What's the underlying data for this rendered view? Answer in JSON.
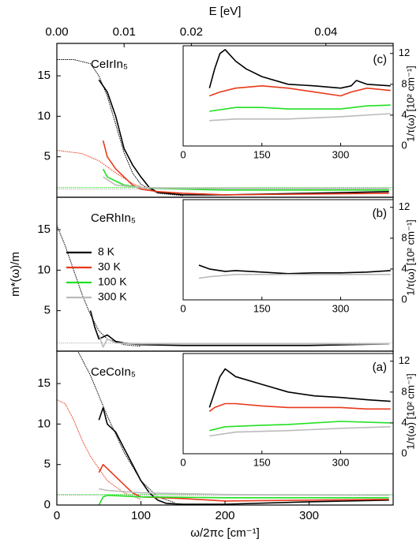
{
  "chart_data": [
    {
      "type": "line",
      "label": "CeIrIn₅",
      "panel": "(c)",
      "x2label": "E [eV]",
      "x2lim": [
        0,
        0.05
      ],
      "x2ticks": [
        {
          "value": 0,
          "label": "0.00"
        },
        {
          "value": 0.01,
          "label": "0.01"
        },
        {
          "value": 0.02,
          "label": "0.02"
        },
        {
          "value": 0.04,
          "label": "0.04"
        }
      ],
      "xlim": [
        0,
        400
      ],
      "ylim": [
        0,
        19
      ],
      "yticks": [
        0,
        5,
        10,
        15
      ],
      "series": [
        {
          "color": "#000000",
          "x": [
            50,
            60,
            70,
            80,
            90,
            100,
            110,
            120,
            150,
            200,
            250,
            300,
            350,
            395
          ],
          "values": [
            14.5,
            13,
            10,
            6,
            4,
            2.5,
            1.2,
            0.6,
            0.3,
            0.3,
            0.4,
            0.5,
            0.6,
            0.7
          ]
        },
        {
          "color": "#e8391b",
          "x": [
            55,
            60,
            70,
            80,
            90,
            100,
            120,
            150,
            200,
            300,
            395
          ],
          "values": [
            7,
            5,
            3.5,
            2.5,
            1.5,
            1,
            0.7,
            0.5,
            0.3,
            0.4,
            0.5
          ]
        },
        {
          "color": "#22e022",
          "x": [
            55,
            60,
            70,
            80,
            100,
            150,
            200,
            300,
            395
          ],
          "values": [
            3.5,
            2.5,
            2,
            1.5,
            1.2,
            1,
            0.9,
            0.9,
            0.9
          ]
        },
        {
          "color": "#bbbbbb",
          "x": [
            55,
            70,
            100,
            150,
            200,
            300,
            395
          ],
          "values": [
            2.5,
            1.5,
            1.2,
            1.1,
            1.1,
            1.1,
            1.1
          ]
        }
      ],
      "fits": [
        {
          "color": "#000000",
          "x": [
            0,
            20,
            40,
            50,
            60,
            70,
            80,
            90,
            100,
            120,
            150
          ],
          "values": [
            17,
            17,
            16.5,
            15,
            12.5,
            9,
            5.5,
            3,
            1.6,
            0.5,
            0.2
          ]
        },
        {
          "color": "#e8391b",
          "x": [
            0,
            30,
            50,
            70,
            90,
            110,
            130,
            150
          ],
          "values": [
            5.8,
            5.4,
            4.5,
            3,
            1.7,
            0.9,
            0.5,
            0.3
          ]
        },
        {
          "color": "#22e022",
          "x": [
            0,
            400
          ],
          "values": [
            1.2,
            1.2
          ]
        },
        {
          "color": "#bbbbbb",
          "x": [
            0,
            400
          ],
          "values": [
            1,
            1
          ]
        }
      ],
      "inset": {
        "type": "line",
        "ylabel": "1/τ(ω) [10² cm⁻¹]",
        "xlim": [
          0,
          400
        ],
        "xticks": [
          0,
          150,
          300
        ],
        "ylim": [
          0,
          13
        ],
        "yticks": [
          0,
          4,
          8,
          12
        ],
        "series": [
          {
            "color": "#000000",
            "x": [
              50,
              60,
              70,
              80,
              100,
              120,
              150,
              200,
              250,
              300,
              320,
              330,
              350,
              395
            ],
            "values": [
              7.5,
              10,
              12,
              12.5,
              11,
              10,
              9,
              8,
              7.8,
              7.5,
              7.8,
              8.5,
              8,
              7.8
            ]
          },
          {
            "color": "#e8391b",
            "x": [
              50,
              70,
              100,
              150,
              200,
              250,
              300,
              320,
              350,
              395
            ],
            "values": [
              6.5,
              7,
              7.5,
              7.8,
              7.5,
              7,
              6.5,
              7,
              7.5,
              7.2
            ]
          },
          {
            "color": "#22e022",
            "x": [
              50,
              100,
              150,
              200,
              300,
              350,
              395
            ],
            "values": [
              4.5,
              5,
              5,
              4.8,
              4.8,
              5.2,
              5.3
            ]
          },
          {
            "color": "#bbbbbb",
            "x": [
              50,
              100,
              200,
              300,
              395
            ],
            "values": [
              3.3,
              3.5,
              3.5,
              3.8,
              4.2
            ]
          }
        ]
      }
    },
    {
      "type": "line",
      "label": "CeRhIn₅",
      "panel": "(b)",
      "ylabel": "m*(ω)/m",
      "legend": "left",
      "xlim": [
        0,
        400
      ],
      "ylim": [
        0,
        19
      ],
      "yticks": [
        0,
        5,
        10,
        15
      ],
      "series": [
        {
          "name": "8 K",
          "color": "#000000",
          "x": [
            40,
            45,
            50,
            60,
            70,
            80,
            100,
            150,
            200,
            300,
            395
          ],
          "values": [
            5,
            3,
            1.5,
            2,
            1.2,
            1,
            0.8,
            0.7,
            0.7,
            0.7,
            0.9
          ]
        },
        {
          "name": "30 K",
          "color": "#e8391b",
          "x": [],
          "values": []
        },
        {
          "name": "100 K",
          "color": "#22e022",
          "x": [],
          "values": []
        },
        {
          "name": "300 K",
          "color": "#bbbbbb",
          "x": [
            50,
            55,
            60,
            70,
            100,
            200,
            395
          ],
          "values": [
            2,
            0.5,
            1.5,
            1,
            0.9,
            0.9,
            0.9
          ]
        }
      ],
      "fits": [
        {
          "color": "#000000",
          "x": [
            0,
            10,
            20,
            30,
            40,
            50,
            60,
            80,
            100
          ],
          "values": [
            15.5,
            13,
            10,
            7,
            4.5,
            2.5,
            1.5,
            0.8,
            0.6
          ]
        },
        {
          "color": "#bbbbbb",
          "x": [
            0,
            400
          ],
          "values": [
            1,
            1
          ]
        }
      ],
      "inset": {
        "type": "line",
        "ylabel": "1/τ(ω) [10² cm⁻¹]",
        "xlim": [
          0,
          400
        ],
        "xticks": [
          0,
          150,
          300
        ],
        "ylim": [
          0,
          13
        ],
        "yticks": [
          0,
          4,
          8,
          12
        ],
        "series": [
          {
            "color": "#000000",
            "x": [
              30,
              50,
              80,
              100,
              150,
              200,
              250,
              300,
              350,
              395
            ],
            "values": [
              4.5,
              4,
              3.7,
              3.8,
              3.6,
              3.4,
              3.5,
              3.5,
              3.6,
              3.8
            ]
          },
          {
            "color": "#bbbbbb",
            "x": [
              30,
              50,
              100,
              200,
              300,
              395
            ],
            "values": [
              2.8,
              3,
              3.3,
              3.3,
              3.3,
              3.3
            ]
          }
        ]
      }
    },
    {
      "type": "line",
      "label": "CeCoIn₅",
      "panel": "(a)",
      "xlabel": "ω/2πc [cm⁻¹]",
      "xlim": [
        0,
        400
      ],
      "xticks": [
        0,
        100,
        200,
        300
      ],
      "ylim": [
        0,
        19
      ],
      "yticks": [
        0,
        5,
        10,
        15
      ],
      "series": [
        {
          "color": "#000000",
          "x": [
            50,
            55,
            60,
            70,
            80,
            90,
            100,
            110,
            120,
            130,
            150,
            200,
            300,
            395
          ],
          "values": [
            10.5,
            12,
            10,
            9,
            7,
            5,
            3,
            1.5,
            0.6,
            0.2,
            0.1,
            0.1,
            0.4,
            0.6
          ]
        },
        {
          "color": "#e8391b",
          "x": [
            50,
            55,
            60,
            70,
            80,
            90,
            100,
            150,
            200,
            300,
            395
          ],
          "values": [
            4,
            5,
            4.5,
            3.5,
            2.5,
            1.5,
            1,
            0.8,
            0.5,
            0.6,
            0.7
          ]
        },
        {
          "color": "#22e022",
          "x": [
            50,
            55,
            60,
            100,
            200,
            395
          ],
          "values": [
            0,
            1,
            1.2,
            1,
            0.9,
            0.9
          ]
        },
        {
          "color": "#bbbbbb",
          "x": [
            50,
            60,
            100,
            200,
            395
          ],
          "values": [
            2,
            1.8,
            1.5,
            1.3,
            1.2
          ]
        }
      ],
      "fits": [
        {
          "color": "#000000",
          "x": [
            0,
            20,
            40,
            60,
            80,
            100,
            120,
            140
          ],
          "values": [
            22,
            20,
            16,
            11,
            6.5,
            3,
            1,
            0.3
          ]
        },
        {
          "color": "#e8391b",
          "x": [
            0,
            10,
            20,
            30,
            40,
            60,
            80,
            100
          ],
          "values": [
            13,
            12.5,
            10.5,
            8,
            6,
            3,
            1.5,
            0.7
          ]
        },
        {
          "color": "#22e022",
          "x": [
            0,
            400
          ],
          "values": [
            1.3,
            1.3
          ]
        },
        {
          "color": "#bbbbbb",
          "x": [
            0,
            400
          ],
          "values": [
            1.2,
            1.2
          ]
        }
      ],
      "inset": {
        "type": "line",
        "ylabel": "1/τ(ω) [10² cm⁻¹]",
        "xlim": [
          0,
          400
        ],
        "xticks": [
          0,
          150,
          300
        ],
        "ylim": [
          0,
          13
        ],
        "yticks": [
          0,
          4,
          8,
          12
        ],
        "series": [
          {
            "color": "#000000",
            "x": [
              50,
              60,
              70,
              80,
              100,
              150,
              200,
              250,
              300,
              350,
              395
            ],
            "values": [
              6,
              8,
              10,
              11,
              10,
              9,
              8,
              7.5,
              7.3,
              7,
              6.8
            ]
          },
          {
            "color": "#e8391b",
            "x": [
              50,
              60,
              80,
              100,
              150,
              200,
              250,
              300,
              350,
              395
            ],
            "values": [
              5.5,
              6,
              6.5,
              6.5,
              6.2,
              6,
              6,
              6,
              5.8,
              5.8
            ]
          },
          {
            "color": "#22e022",
            "x": [
              50,
              80,
              150,
              200,
              300,
              395
            ],
            "values": [
              3,
              3.5,
              3.7,
              3.8,
              4.2,
              4
            ]
          },
          {
            "color": "#bbbbbb",
            "x": [
              50,
              100,
              200,
              300,
              395
            ],
            "values": [
              2.3,
              2.8,
              3,
              3.3,
              3.5
            ]
          }
        ]
      }
    }
  ]
}
